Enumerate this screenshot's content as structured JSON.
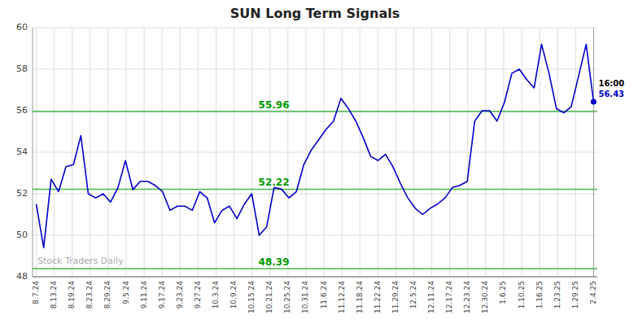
{
  "chart_data": {
    "type": "line",
    "title": "SUN Long Term Signals",
    "color": "#0000cc",
    "grid": true,
    "values": [
      51.5,
      49.4,
      52.7,
      52.1,
      53.3,
      53.4,
      54.8,
      52.0,
      51.8,
      52.0,
      51.6,
      52.3,
      53.6,
      52.2,
      52.6,
      52.6,
      52.4,
      52.1,
      51.2,
      51.4,
      51.4,
      51.2,
      52.1,
      51.8,
      50.6,
      51.2,
      51.4,
      50.8,
      51.5,
      52.0,
      50.0,
      50.4,
      52.3,
      52.22,
      51.8,
      52.1,
      53.4,
      54.1,
      54.6,
      55.1,
      55.5,
      56.6,
      56.1,
      55.5,
      54.7,
      53.8,
      53.6,
      53.9,
      53.3,
      52.5,
      51.8,
      51.3,
      51.0,
      51.3,
      51.5,
      51.8,
      52.3,
      52.4,
      52.6,
      55.5,
      56.0,
      56.0,
      55.5,
      56.4,
      57.8,
      58.0,
      57.5,
      57.1,
      59.2,
      57.8,
      56.1,
      55.9,
      56.2,
      57.7,
      59.2,
      56.43
    ],
    "xlim": [
      -0.5,
      75.5
    ],
    "xticks": [
      {
        "value": 0,
        "label": "8.7.24"
      },
      {
        "value": 2.4194,
        "label": "8.13.24"
      },
      {
        "value": 4.8387,
        "label": "8.19.24"
      },
      {
        "value": 7.2581,
        "label": "8.23.24"
      },
      {
        "value": 9.6774,
        "label": "8.29.24"
      },
      {
        "value": 12.0968,
        "label": "9.5.24"
      },
      {
        "value": 14.5161,
        "label": "9.11.24"
      },
      {
        "value": 16.9355,
        "label": "9.17.24"
      },
      {
        "value": 19.3548,
        "label": "9.23.24"
      },
      {
        "value": 21.7742,
        "label": "9.27.24"
      },
      {
        "value": 24.1935,
        "label": "10.3.24"
      },
      {
        "value": 26.6129,
        "label": "10.9.24"
      },
      {
        "value": 29.0323,
        "label": "10.15.24"
      },
      {
        "value": 31.4516,
        "label": "10.21.24"
      },
      {
        "value": 33.871,
        "label": "10.25.24"
      },
      {
        "value": 36.2903,
        "label": "10.31.24"
      },
      {
        "value": 38.7097,
        "label": "11.6.24"
      },
      {
        "value": 41.129,
        "label": "11.12.24"
      },
      {
        "value": 43.5484,
        "label": "11.18.24"
      },
      {
        "value": 45.9677,
        "label": "11.22.24"
      },
      {
        "value": 48.3871,
        "label": "11.29.24"
      },
      {
        "value": 50.8065,
        "label": "12.5.24"
      },
      {
        "value": 53.2258,
        "label": "12.11.24"
      },
      {
        "value": 55.6452,
        "label": "12.17.24"
      },
      {
        "value": 58.0645,
        "label": "12.23.24"
      },
      {
        "value": 60.4839,
        "label": "12.30.24"
      },
      {
        "value": 62.9032,
        "label": "1.6.25"
      },
      {
        "value": 65.3226,
        "label": "1.10.25"
      },
      {
        "value": 67.7419,
        "label": "1.16.25"
      },
      {
        "value": 70.1613,
        "label": "1.23.25"
      },
      {
        "value": 72.5806,
        "label": "1.29.25"
      },
      {
        "value": 75,
        "label": "2.4.25"
      }
    ],
    "ylim": [
      48,
      60
    ],
    "yticks": [
      48,
      50,
      52,
      54,
      56,
      58,
      60
    ],
    "hlines": [
      {
        "value": 55.96,
        "label": "55.96",
        "color": "#009900"
      },
      {
        "value": 52.22,
        "label": "52.22",
        "color": "#009900"
      },
      {
        "value": 48.39,
        "label": "48.39",
        "color": "#009900"
      }
    ],
    "watermark": "Stock Traders Daily",
    "last_time": "16:00"
  }
}
